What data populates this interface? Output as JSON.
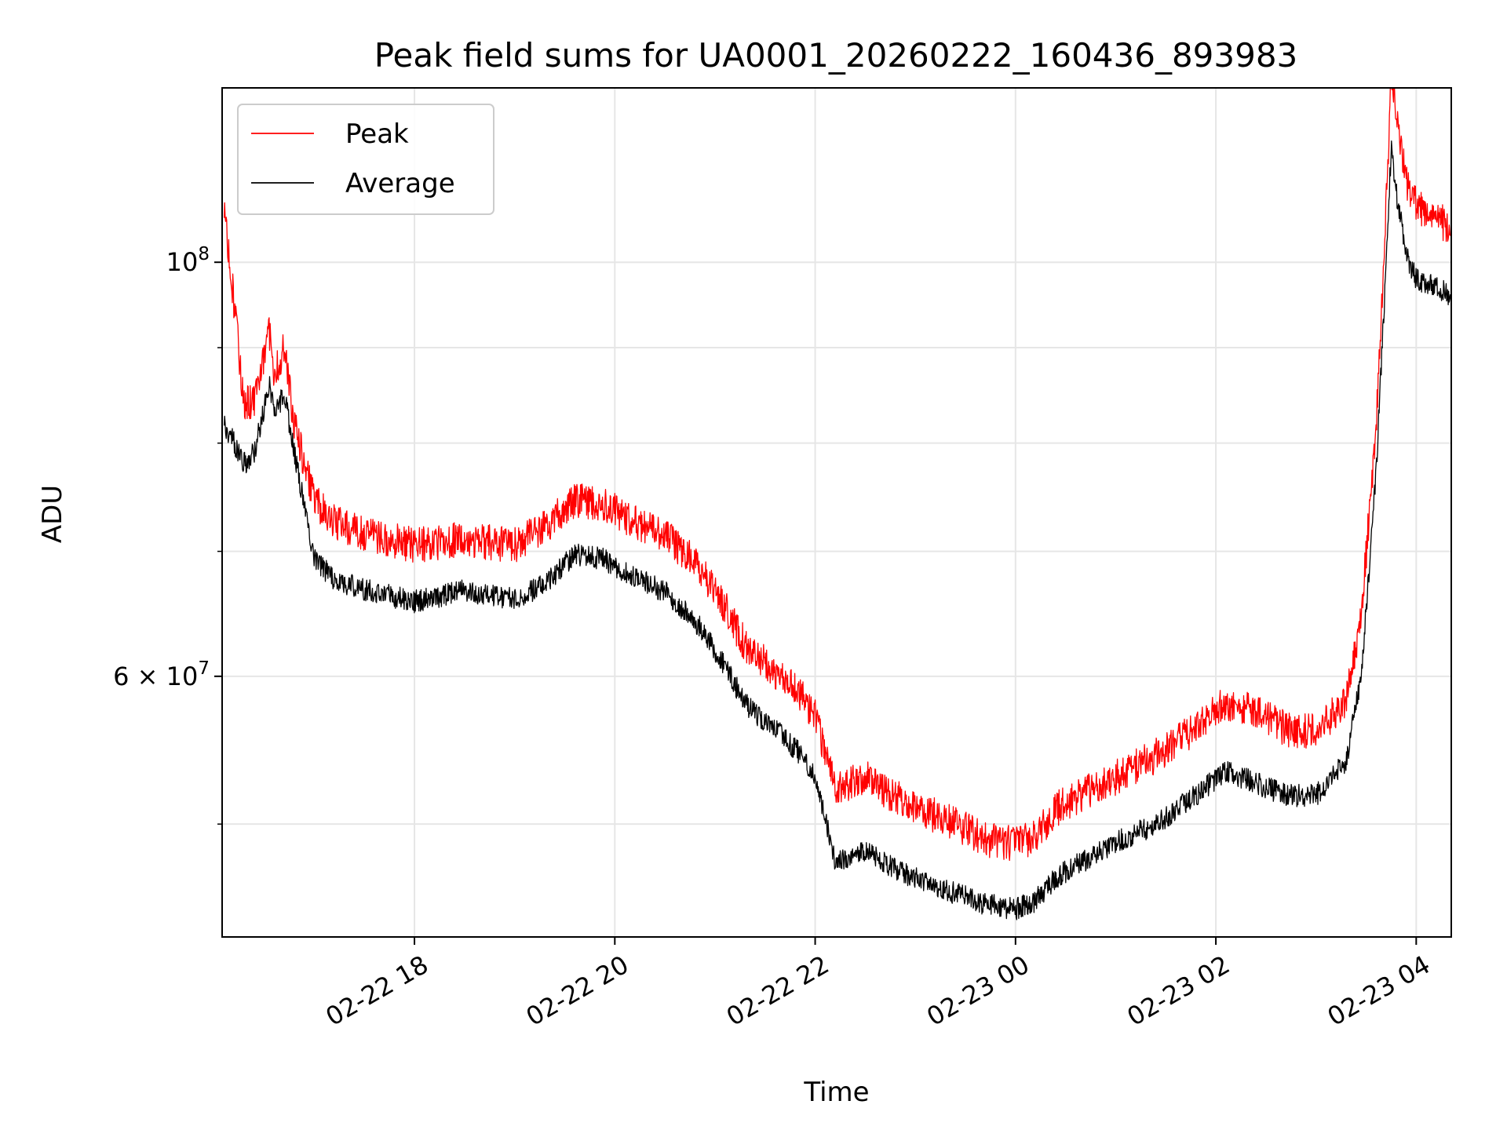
{
  "chart_data": {
    "type": "line",
    "title": "Peak field sums for UA0001_20260222_160436_893983",
    "xlabel": "Time",
    "ylabel": "ADU",
    "yscale": "log",
    "ylim": [
      43500000,
      124000000
    ],
    "xlim_hours": [
      16.08,
      28.35
    ],
    "grid": true,
    "legend_position": "upper-left",
    "x_ticks": [
      {
        "hour": 18,
        "label": "02-22 18"
      },
      {
        "hour": 20,
        "label": "02-22 20"
      },
      {
        "hour": 22,
        "label": "02-22 22"
      },
      {
        "hour": 24,
        "label": "02-23 00"
      },
      {
        "hour": 26,
        "label": "02-23 02"
      },
      {
        "hour": 28,
        "label": "02-23 04"
      }
    ],
    "y_major_ticks": [
      {
        "value": 100000000,
        "base": "10",
        "exp": "8"
      },
      {
        "value": 60000000,
        "base": "6 × 10",
        "exp": "7"
      }
    ],
    "y_minor_ticks": [
      50000000,
      70000000,
      80000000,
      90000000
    ],
    "series": [
      {
        "name": "Peak",
        "color": "#ff0000",
        "noise_mult": 0.045,
        "hours": [
          16.1,
          16.3,
          16.4,
          16.55,
          16.6,
          16.7,
          16.8,
          17.0,
          17.2,
          17.5,
          18.0,
          18.5,
          19.0,
          19.3,
          19.6,
          19.9,
          20.2,
          20.5,
          20.8,
          21.1,
          21.3,
          21.6,
          21.9,
          22.0,
          22.2,
          22.5,
          22.9,
          23.3,
          23.7,
          24.0,
          24.2,
          24.4,
          24.6,
          25.0,
          25.4,
          25.8,
          26.1,
          26.4,
          26.7,
          27.0,
          27.3,
          27.45,
          27.6,
          27.7,
          27.75,
          27.8,
          27.9,
          28.0,
          28.35
        ],
        "values": [
          105000000,
          82000000,
          82500000,
          90000000,
          85000000,
          88000000,
          80000000,
          73000000,
          71000000,
          70000000,
          69000000,
          69500000,
          69000000,
          70500000,
          73000000,
          72500000,
          71000000,
          69800000,
          67500000,
          64000000,
          61000000,
          59000000,
          57000000,
          55800000,
          51000000,
          51800000,
          50200000,
          49200000,
          48000000,
          47700000,
          48200000,
          49800000,
          50500000,
          51800000,
          53200000,
          55000000,
          56800000,
          56200000,
          55000000,
          54800000,
          57000000,
          63000000,
          80000000,
          105000000,
          123000000,
          117000000,
          108000000,
          105000000,
          102000000
        ]
      },
      {
        "name": "Average",
        "color": "#000000",
        "noise_mult": 0.014,
        "hours": [
          16.1,
          16.3,
          16.4,
          16.55,
          16.6,
          16.7,
          16.8,
          17.0,
          17.2,
          17.5,
          18.0,
          18.5,
          19.0,
          19.3,
          19.6,
          19.9,
          20.2,
          20.5,
          20.8,
          21.1,
          21.3,
          21.6,
          21.9,
          22.0,
          22.2,
          22.5,
          22.9,
          23.3,
          23.7,
          24.0,
          24.2,
          24.4,
          24.6,
          25.0,
          25.4,
          25.8,
          26.1,
          26.4,
          26.7,
          27.0,
          27.3,
          27.45,
          27.6,
          27.7,
          27.75,
          27.8,
          27.9,
          28.0,
          28.35
        ],
        "values": [
          82000000,
          78000000,
          79000000,
          86000000,
          83000000,
          85000000,
          79000000,
          69500000,
          67500000,
          66800000,
          65800000,
          66700000,
          66000000,
          67200000,
          69800000,
          69300000,
          67800000,
          66600000,
          64300000,
          60800000,
          58000000,
          56200000,
          54200000,
          52800000,
          47800000,
          48300000,
          47000000,
          46100000,
          45300000,
          45000000,
          45500000,
          46800000,
          47500000,
          48900000,
          50000000,
          51800000,
          53400000,
          52600000,
          51800000,
          51800000,
          54000000,
          60000000,
          77000000,
          100000000,
          115000000,
          109000000,
          101000000,
          98000000,
          96000000
        ]
      }
    ]
  }
}
